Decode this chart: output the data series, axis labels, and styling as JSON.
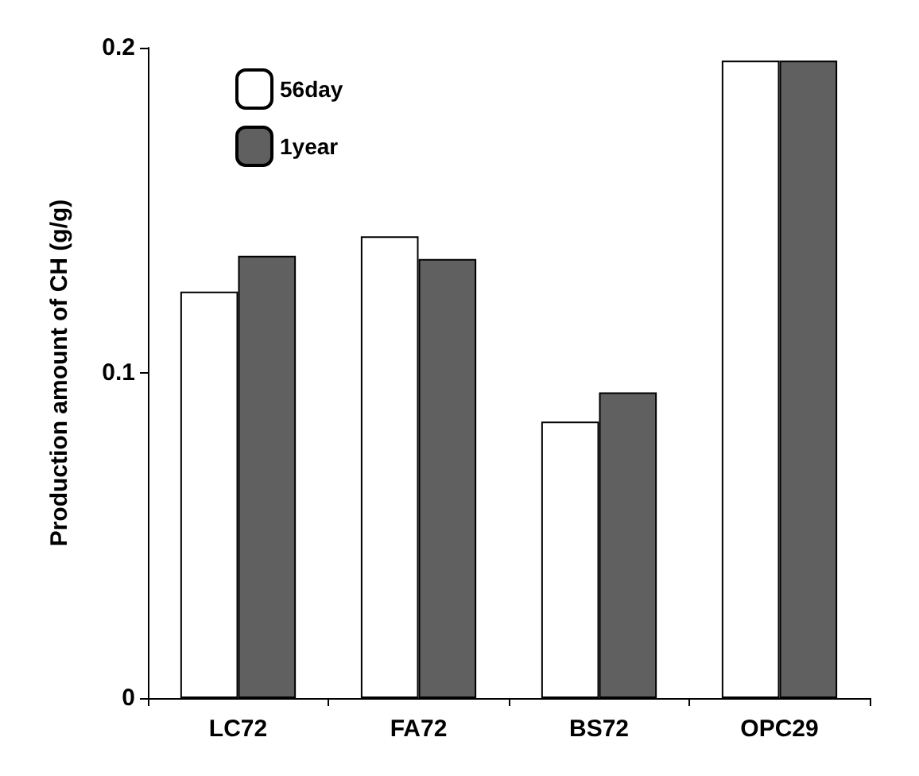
{
  "chart_data": {
    "type": "bar",
    "ylabel": "Production amount of CH (g/g)",
    "categories": [
      "LC72",
      "FA72",
      "BS72",
      "OPC29"
    ],
    "series": [
      {
        "name": "56day",
        "color": "#ffffff",
        "values": [
          0.125,
          0.142,
          0.085,
          0.196
        ]
      },
      {
        "name": "1year",
        "color": "#606060",
        "values": [
          0.136,
          0.135,
          0.094,
          0.196
        ]
      }
    ],
    "ylim": [
      0,
      0.2
    ],
    "yticks": [
      0,
      0.1,
      0.2
    ],
    "legend": "top left",
    "grid": false
  }
}
